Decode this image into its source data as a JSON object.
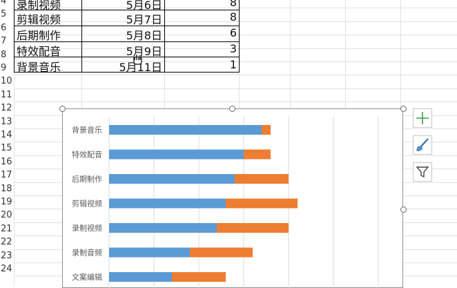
{
  "sheet": {
    "row_numbers": [
      "4",
      "5",
      "6",
      "7",
      "8",
      "9",
      "10",
      "11",
      "12",
      "13",
      "14",
      "15",
      "16",
      "17",
      "18",
      "19",
      "20",
      "21",
      "22",
      "23",
      "24"
    ],
    "rows": [
      {
        "task": "录制视频",
        "date": "5月6日",
        "days": "8"
      },
      {
        "task": "剪辑视频",
        "date": "5月7日",
        "days": "8"
      },
      {
        "task": "后期制作",
        "date": "5月8日",
        "days": "6"
      },
      {
        "task": "特效配音",
        "date": "5月9日",
        "days": "3"
      },
      {
        "task": "背景音乐",
        "date": "5月11日",
        "days": "1"
      }
    ]
  },
  "chart_buttons": [
    {
      "icon": "plus-icon"
    },
    {
      "icon": "brush-icon"
    },
    {
      "icon": "filter-icon"
    }
  ],
  "chart_data": {
    "type": "bar",
    "orientation": "horizontal",
    "stacked": true,
    "categories": [
      "背景音乐",
      "特效配音",
      "后期制作",
      "剪辑视频",
      "录制视频",
      "录制音频",
      "文案编辑"
    ],
    "series": [
      {
        "color": "#5b9bd5",
        "values": [
          34,
          30,
          28,
          26,
          24,
          18,
          14
        ]
      },
      {
        "color": "#ed7d31",
        "values": [
          2,
          6,
          12,
          16,
          16,
          14,
          12
        ]
      }
    ],
    "xlim": [
      0,
      60
    ],
    "grid": true,
    "legend": "none"
  }
}
